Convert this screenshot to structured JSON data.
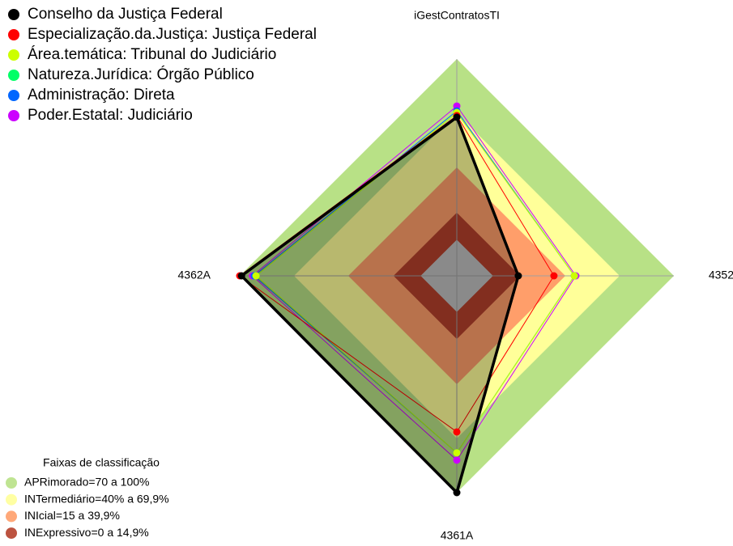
{
  "chart_data": {
    "type": "radar",
    "title": "iGestContratosTI",
    "categories": [
      "iGestContratosTI",
      "4352",
      "4361A",
      "4362A"
    ],
    "ylim": [
      -20,
      100
    ],
    "center_color": "#c0c0c0",
    "spoke_color": "#a0a0a0",
    "legend_title": "Faixas de classificação",
    "bands": [
      {
        "label": "APRimorado=70 a 100%",
        "from": 70,
        "to": 100,
        "color": "#b8e186"
      },
      {
        "label": "INTermediário=40% a 69,9%",
        "from": 40,
        "to": 70,
        "color": "#ffff99"
      },
      {
        "label": "INIcial=15 a 39,9%",
        "from": 15,
        "to": 40,
        "color": "#ff9e6a"
      },
      {
        "label": "INExpressivo=0 a 14,9%",
        "from": 0,
        "to": 15,
        "color": "#b5402b"
      }
    ],
    "series": [
      {
        "name": "Conselho da Justiça Federal",
        "color": "#000000",
        "values": [
          67.8,
          14,
          100,
          99
        ],
        "width": 3.5,
        "fill_opacity": 0.28
      },
      {
        "name": "Especialização.da.Justiça: Justiça Federal",
        "color": "#ff0000",
        "values": [
          68.7,
          33.7,
          66.4,
          100
        ],
        "width": 1
      },
      {
        "name": "Área.temática: Tribunal do Judiciário",
        "color": "#ccff00",
        "values": [
          70.4,
          45,
          78,
          91
        ],
        "width": 1
      },
      {
        "name": "Natureza.Jurídica: Órgão Público",
        "color": "#00ff66",
        "values": [
          70.4,
          45,
          78,
          91
        ],
        "width": 1
      },
      {
        "name": "Administração: Direta",
        "color": "#0066ff",
        "values": [
          71.3,
          45,
          78,
          92
        ],
        "width": 1
      },
      {
        "name": "Poder.Estatal: Judiciário",
        "color": "#cc00ff",
        "values": [
          74,
          45.8,
          82,
          93
        ],
        "width": 1
      }
    ]
  }
}
